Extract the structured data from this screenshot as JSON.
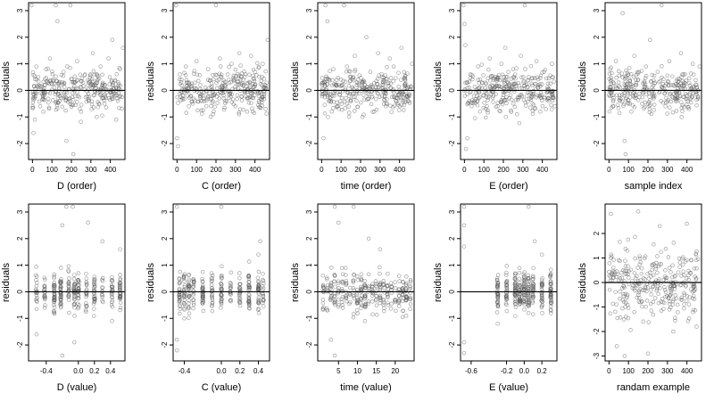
{
  "chart_data": [
    {
      "type": "scatter",
      "xlabel": "D (order)",
      "ylabel": "residuals",
      "xlim": [
        -20,
        475
      ],
      "ylim": [
        -2.6,
        3.3
      ],
      "xticks": [
        0,
        100,
        200,
        300,
        400
      ],
      "xtick_labels": [
        "0",
        "100",
        "200",
        "300",
        "400"
      ],
      "yticks": [
        -2,
        -1,
        0,
        1,
        2,
        3
      ],
      "ytick_labels": [
        "-2",
        "-1",
        "0",
        "1",
        "2",
        "3"
      ],
      "hline": 0,
      "x_pattern": "index 1-460",
      "points": [
        [
          -5,
          3.2
        ],
        [
          5,
          -1.6
        ],
        [
          12,
          -1.1
        ],
        [
          20,
          0.9
        ],
        [
          30,
          0.5
        ],
        [
          40,
          -0.6
        ],
        [
          55,
          -0.3
        ],
        [
          70,
          0.8
        ],
        [
          90,
          1.2
        ],
        [
          105,
          0.4
        ],
        [
          120,
          3.2
        ],
        [
          128,
          2.6
        ],
        [
          140,
          -0.4
        ],
        [
          160,
          0.7
        ],
        [
          175,
          -1.9
        ],
        [
          195,
          3.2
        ],
        [
          210,
          -2.4
        ],
        [
          230,
          1.1
        ],
        [
          250,
          -0.8
        ],
        [
          270,
          0.6
        ],
        [
          290,
          0.3
        ],
        [
          310,
          1.4
        ],
        [
          330,
          -1.0
        ],
        [
          350,
          0.9
        ],
        [
          370,
          -0.5
        ],
        [
          390,
          1.2
        ],
        [
          410,
          1.9
        ],
        [
          430,
          -1.1
        ],
        [
          450,
          0.8
        ],
        [
          465,
          1.6
        ]
      ]
    },
    {
      "type": "scatter",
      "xlabel": "C (order)",
      "ylabel": "residuals",
      "xlim": [
        -20,
        475
      ],
      "ylim": [
        -2.6,
        3.3
      ],
      "xticks": [
        0,
        100,
        200,
        300,
        400
      ],
      "xtick_labels": [
        "0",
        "100",
        "200",
        "300",
        "400"
      ],
      "yticks": [
        -2,
        -1,
        0,
        1,
        2,
        3
      ],
      "ytick_labels": [
        "-2",
        "-1",
        "0",
        "1",
        "2",
        "3"
      ],
      "hline": 0,
      "x_pattern": "index 1-460",
      "points": [
        [
          -5,
          3.2
        ],
        [
          0,
          -1.8
        ],
        [
          5,
          -2.1
        ],
        [
          15,
          0.6
        ],
        [
          30,
          -0.2
        ],
        [
          45,
          0.9
        ],
        [
          60,
          0.3
        ],
        [
          80,
          -0.5
        ],
        [
          100,
          1.1
        ],
        [
          120,
          0.2
        ],
        [
          140,
          -0.4
        ],
        [
          160,
          0.8
        ],
        [
          185,
          -0.9
        ],
        [
          200,
          3.2
        ],
        [
          220,
          1.2
        ],
        [
          240,
          -0.3
        ],
        [
          260,
          0.6
        ],
        [
          280,
          1.0
        ],
        [
          300,
          -0.6
        ],
        [
          320,
          1.4
        ],
        [
          340,
          0.4
        ],
        [
          360,
          -0.8
        ],
        [
          380,
          1.3
        ],
        [
          400,
          0.7
        ],
        [
          420,
          -0.4
        ],
        [
          440,
          1.0
        ],
        [
          455,
          -0.7
        ],
        [
          465,
          1.9
        ]
      ]
    },
    {
      "type": "scatter",
      "xlabel": "time (order)",
      "ylabel": "residuals",
      "xlim": [
        -20,
        475
      ],
      "ylim": [
        -2.6,
        3.3
      ],
      "xticks": [
        0,
        100,
        200,
        300,
        400
      ],
      "xtick_labels": [
        "0",
        "100",
        "200",
        "300",
        "400"
      ],
      "yticks": [
        -2,
        -1,
        0,
        1,
        2,
        3
      ],
      "ytick_labels": [
        "-2",
        "-1",
        "0",
        "1",
        "2",
        "3"
      ],
      "hline": 0,
      "x_pattern": "index 1-460",
      "points": [
        [
          10,
          -1.8
        ],
        [
          20,
          3.2
        ],
        [
          30,
          2.6
        ],
        [
          45,
          -0.3
        ],
        [
          60,
          0.8
        ],
        [
          80,
          -0.6
        ],
        [
          100,
          0.4
        ],
        [
          115,
          3.2
        ],
        [
          130,
          0.9
        ],
        [
          150,
          -0.4
        ],
        [
          170,
          1.3
        ],
        [
          190,
          0.2
        ],
        [
          210,
          -1.0
        ],
        [
          230,
          2.0
        ],
        [
          250,
          0.7
        ],
        [
          270,
          -0.8
        ],
        [
          290,
          1.4
        ],
        [
          310,
          0.5
        ],
        [
          330,
          -0.6
        ],
        [
          350,
          1.2
        ],
        [
          370,
          0.9
        ],
        [
          390,
          -0.3
        ],
        [
          410,
          1.6
        ],
        [
          430,
          0.4
        ],
        [
          450,
          -0.2
        ],
        [
          465,
          1.0
        ]
      ]
    },
    {
      "type": "scatter",
      "xlabel": "E (order)",
      "ylabel": "residuals",
      "xlim": [
        -20,
        475
      ],
      "ylim": [
        -2.6,
        3.3
      ],
      "xticks": [
        0,
        100,
        200,
        300,
        400
      ],
      "xtick_labels": [
        "0",
        "100",
        "200",
        "300",
        "400"
      ],
      "yticks": [
        -2,
        -1,
        0,
        1,
        2,
        3
      ],
      "ytick_labels": [
        "-2",
        "-1",
        "0",
        "1",
        "2",
        "3"
      ],
      "hline": 0,
      "x_pattern": "index 1-460",
      "points": [
        [
          -5,
          3.2
        ],
        [
          0,
          2.5
        ],
        [
          5,
          1.7
        ],
        [
          8,
          -2.2
        ],
        [
          15,
          -1.8
        ],
        [
          30,
          0.6
        ],
        [
          50,
          -0.4
        ],
        [
          70,
          0.9
        ],
        [
          90,
          0.3
        ],
        [
          110,
          -0.7
        ],
        [
          130,
          1.2
        ],
        [
          150,
          0.4
        ],
        [
          170,
          -0.6
        ],
        [
          190,
          1.0
        ],
        [
          210,
          1.6
        ],
        [
          230,
          -0.3
        ],
        [
          250,
          0.8
        ],
        [
          270,
          -0.9
        ],
        [
          290,
          1.3
        ],
        [
          310,
          3.2
        ],
        [
          330,
          0.5
        ],
        [
          350,
          -0.5
        ],
        [
          370,
          1.1
        ],
        [
          390,
          -0.8
        ],
        [
          410,
          0.7
        ],
        [
          430,
          -0.3
        ],
        [
          450,
          1.0
        ],
        [
          465,
          -0.6
        ]
      ]
    },
    {
      "type": "scatter",
      "xlabel": "sample index",
      "ylabel": "residuals",
      "xlim": [
        -20,
        475
      ],
      "ylim": [
        -2.6,
        3.3
      ],
      "xticks": [
        0,
        100,
        200,
        300,
        400
      ],
      "xtick_labels": [
        "0",
        "100",
        "200",
        "300",
        "400"
      ],
      "yticks": [
        -2,
        -1,
        0,
        1,
        2,
        3
      ],
      "ytick_labels": [
        "-2",
        "-1",
        "0",
        "1",
        "2",
        "3"
      ],
      "hline": 0,
      "x_pattern": "index 1-460",
      "points": [
        [
          5,
          0.8
        ],
        [
          20,
          -0.6
        ],
        [
          35,
          1.1
        ],
        [
          50,
          0.3
        ],
        [
          70,
          2.9
        ],
        [
          80,
          -1.9
        ],
        [
          85,
          -2.4
        ],
        [
          100,
          0.6
        ],
        [
          115,
          -0.8
        ],
        [
          130,
          1.3
        ],
        [
          150,
          0.4
        ],
        [
          170,
          -0.5
        ],
        [
          190,
          0.9
        ],
        [
          210,
          1.9
        ],
        [
          230,
          -0.3
        ],
        [
          250,
          0.7
        ],
        [
          270,
          3.2
        ],
        [
          290,
          -0.6
        ],
        [
          310,
          1.1
        ],
        [
          330,
          0.2
        ],
        [
          350,
          -0.4
        ],
        [
          370,
          1.4
        ],
        [
          390,
          0.6
        ],
        [
          410,
          -0.7
        ],
        [
          430,
          1.0
        ],
        [
          450,
          0.1
        ],
        [
          465,
          0.9
        ]
      ]
    },
    {
      "type": "scatter",
      "xlabel": "D (value)",
      "ylabel": "residuals",
      "xlim": [
        -0.62,
        0.58
      ],
      "ylim": [
        -2.6,
        3.3
      ],
      "xticks": [
        -0.4,
        0,
        0.2,
        0.4
      ],
      "xtick_labels": [
        "-0.4",
        "0.0",
        "0.2",
        "0.4"
      ],
      "yticks": [
        -2,
        -1,
        0,
        1,
        2,
        3
      ],
      "ytick_labels": [
        "-2",
        "-1",
        "0",
        "1",
        "2",
        "3"
      ],
      "hline": 0,
      "x_pattern": "clustered",
      "clusters": [
        -0.52,
        -0.42,
        -0.3,
        -0.22,
        -0.12,
        -0.05,
        0,
        0.1,
        0.2,
        0.3,
        0.42,
        0.52
      ],
      "points": [
        [
          -0.2,
          2.5
        ],
        [
          -0.15,
          3.2
        ],
        [
          -0.07,
          3.2
        ],
        [
          0.12,
          2.6
        ],
        [
          0.3,
          1.9
        ],
        [
          0.52,
          1.6
        ],
        [
          -0.05,
          -1.9
        ],
        [
          -0.2,
          -2.4
        ],
        [
          0.42,
          -1.1
        ],
        [
          -0.52,
          -1.6
        ]
      ]
    },
    {
      "type": "scatter",
      "xlabel": "C (value)",
      "ylabel": "residuals",
      "xlim": [
        -0.52,
        0.52
      ],
      "ylim": [
        -2.6,
        3.3
      ],
      "xticks": [
        -0.4,
        0,
        0.2,
        0.4
      ],
      "xtick_labels": [
        "-0.4",
        "0.0",
        "0.2",
        "0.4"
      ],
      "yticks": [
        -2,
        -1,
        0,
        1,
        2,
        3
      ],
      "ytick_labels": [
        "-2",
        "-1",
        "0",
        "1",
        "2",
        "3"
      ],
      "hline": 0,
      "x_pattern": "clustered",
      "clusters": [
        -0.45,
        -0.4,
        -0.35,
        -0.3,
        -0.2,
        -0.1,
        0,
        0.1,
        0.2,
        0.3,
        0.4,
        0.45
      ],
      "points": [
        [
          -0.48,
          3.2
        ],
        [
          0.0,
          3.2
        ],
        [
          -0.48,
          -1.8
        ],
        [
          -0.48,
          -2.2
        ],
        [
          0.42,
          1.9
        ],
        [
          0.4,
          1.4
        ],
        [
          -0.4,
          -1.0
        ]
      ]
    },
    {
      "type": "scatter",
      "xlabel": "time (value)",
      "ylabel": "residuals",
      "xlim": [
        -0.5,
        25
      ],
      "ylim": [
        -2.6,
        3.3
      ],
      "xticks": [
        5,
        10,
        15,
        20
      ],
      "xtick_labels": [
        "5",
        "10",
        "15",
        "20"
      ],
      "yticks": [
        -2,
        -1,
        0,
        1,
        2,
        3
      ],
      "ytick_labels": [
        "-2",
        "-1",
        "0",
        "1",
        "2",
        "3"
      ],
      "hline": 0,
      "x_pattern": "clustered",
      "clusters": [
        1,
        2,
        3,
        4,
        5,
        6,
        7,
        8,
        9,
        10,
        11,
        12,
        13,
        14,
        15,
        16,
        17,
        18,
        19,
        20,
        21,
        22,
        23,
        24
      ],
      "points": [
        [
          4,
          3.2
        ],
        [
          5,
          2.6
        ],
        [
          9,
          3.2
        ],
        [
          3,
          -1.8
        ],
        [
          4,
          -2.4
        ],
        [
          13,
          2.0
        ],
        [
          16,
          1.6
        ],
        [
          12,
          -1.1
        ]
      ]
    },
    {
      "type": "scatter",
      "xlabel": "E (value)",
      "ylabel": "residuals",
      "xlim": [
        -0.72,
        0.37
      ],
      "ylim": [
        -2.6,
        3.3
      ],
      "xticks": [
        -0.6,
        -0.2,
        0,
        0.2
      ],
      "xtick_labels": [
        "-0.6",
        "-0.2",
        "0.0",
        "0.2"
      ],
      "yticks": [
        -2,
        -1,
        0,
        1,
        2,
        3
      ],
      "ytick_labels": [
        "-2",
        "-1",
        "0",
        "1",
        "2",
        "3"
      ],
      "hline": 0,
      "x_pattern": "clustered",
      "clusters": [
        -0.3,
        -0.2,
        -0.1,
        -0.05,
        0,
        0.05,
        0.1,
        0.2,
        0.3
      ],
      "points": [
        [
          -0.68,
          3.2
        ],
        [
          -0.68,
          2.5
        ],
        [
          -0.68,
          1.7
        ],
        [
          -0.68,
          -1.9
        ],
        [
          -0.68,
          -2.3
        ],
        [
          0.05,
          3.2
        ],
        [
          0.12,
          1.9
        ],
        [
          0.2,
          1.4
        ],
        [
          -0.3,
          -1.2
        ]
      ]
    },
    {
      "type": "scatter",
      "xlabel": "randam example",
      "ylabel": "residuals",
      "xlim": [
        -20,
        475
      ],
      "ylim": [
        -3.2,
        3.2
      ],
      "xticks": [
        0,
        100,
        200,
        300,
        400
      ],
      "xtick_labels": [
        "0",
        "100",
        "200",
        "300",
        "400"
      ],
      "yticks": [
        -3,
        -2,
        -1,
        0,
        1,
        2
      ],
      "ytick_labels": [
        "-3",
        "-2",
        "-1",
        "0",
        "1",
        "2"
      ],
      "hline": 0,
      "x_pattern": "index 1-460",
      "points": [
        [
          10,
          2.8
        ],
        [
          40,
          -2.6
        ],
        [
          80,
          -3.0
        ],
        [
          150,
          2.9
        ],
        [
          200,
          -2.9
        ],
        [
          260,
          2.3
        ],
        [
          330,
          -2.0
        ],
        [
          400,
          2.4
        ],
        [
          450,
          -1.8
        ]
      ]
    }
  ]
}
